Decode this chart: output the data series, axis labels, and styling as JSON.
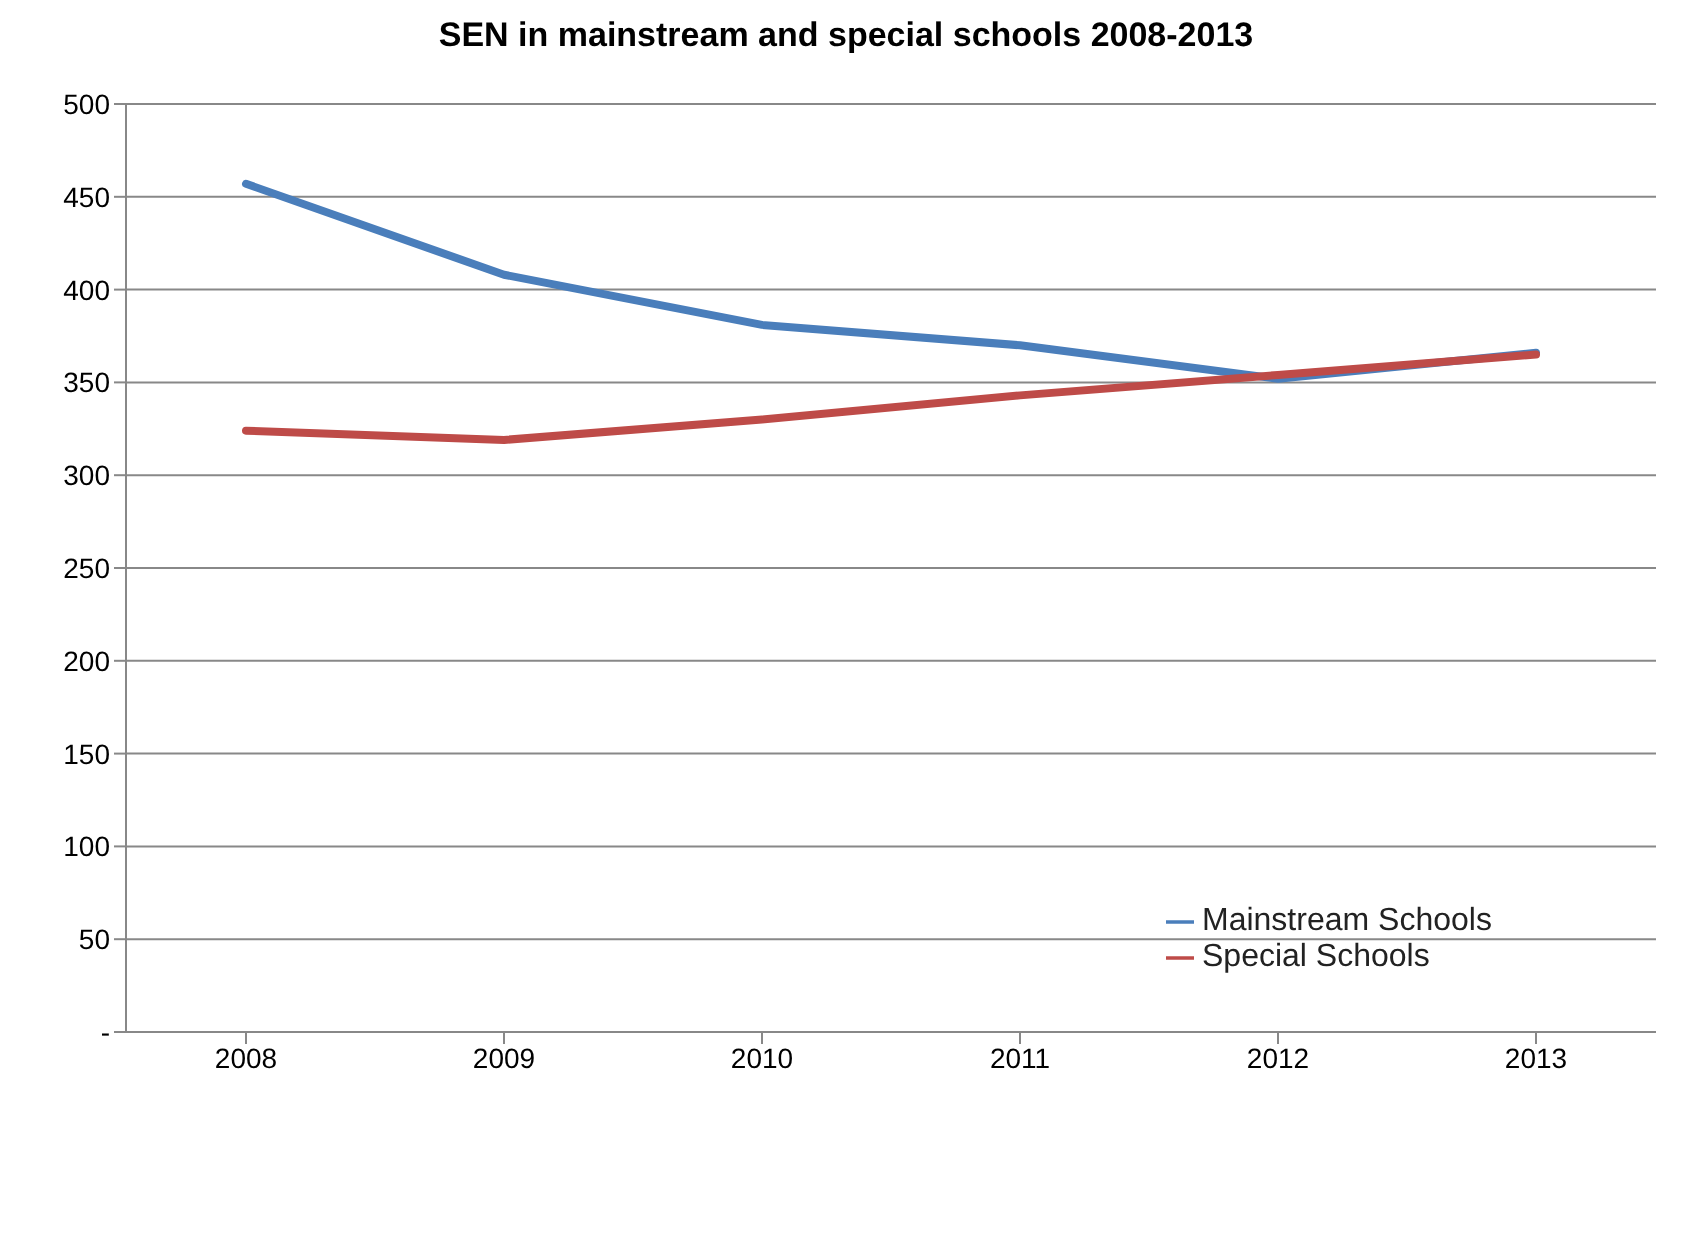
{
  "chart_data": {
    "type": "line",
    "title": "SEN in mainstream and special schools 2008-2013",
    "categories": [
      "2008",
      "2009",
      "2010",
      "2011",
      "2012",
      "2013"
    ],
    "series": [
      {
        "name": "Mainstream Schools",
        "color": "#4a7ebb",
        "values": [
          457,
          408,
          381,
          370,
          352,
          366
        ]
      },
      {
        "name": "Special Schools",
        "color": "#be4b48",
        "values": [
          324,
          319,
          330,
          343,
          354,
          365
        ]
      }
    ],
    "ylim": [
      0,
      500
    ],
    "yticks": [
      {
        "value": 0,
        "label": "-"
      },
      50,
      100,
      150,
      200,
      250,
      300,
      350,
      400,
      450,
      500
    ],
    "grid": "y",
    "legend": "bottom right",
    "marker": "none",
    "line_style": "solid"
  }
}
